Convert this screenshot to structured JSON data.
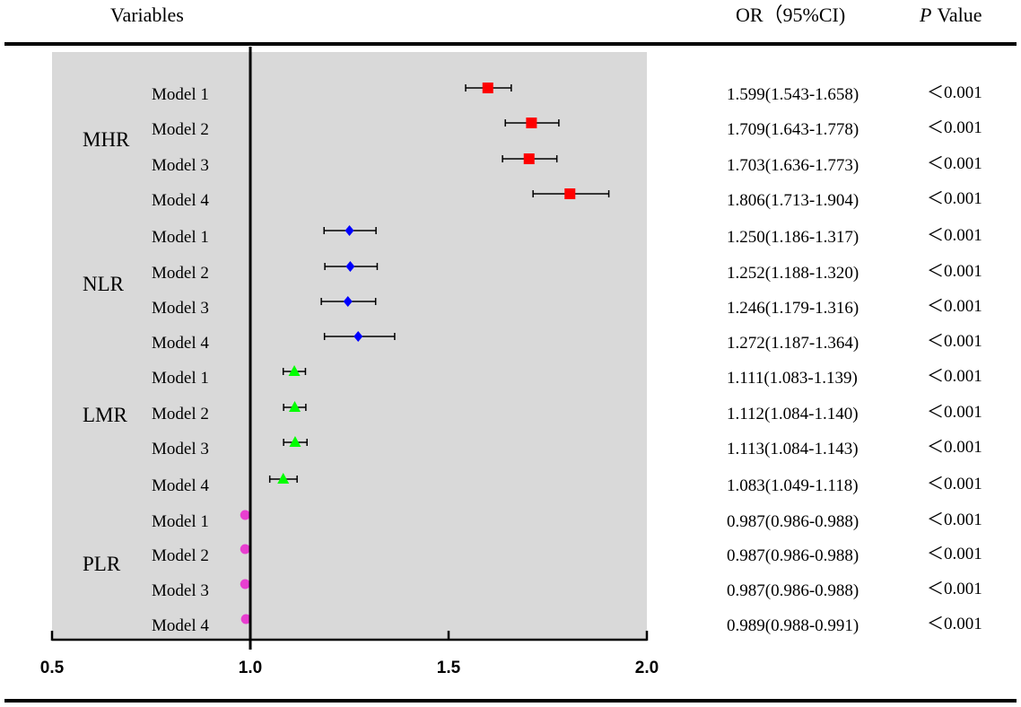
{
  "headers": {
    "variables": "Variables",
    "or_ci": "OR（95%CI)",
    "p_italic": "P",
    "p_rest": "Value"
  },
  "chart_data": {
    "type": "forest",
    "xlim": [
      0.5,
      2.0
    ],
    "reference_line": 1.0,
    "tick_labels": [
      "0.5",
      "1.0",
      "1.5",
      "2.0"
    ],
    "tick_values": [
      0.5,
      1.0,
      1.5,
      2.0
    ],
    "background": "#d9d9d9",
    "groups": [
      {
        "name": "MHR",
        "marker": "square",
        "color": "#ff0000",
        "rows": [
          {
            "model": "Model 1",
            "or": 1.599,
            "lo": 1.543,
            "hi": 1.658,
            "text": "1.599(1.543-1.658)",
            "p": "＜0.001"
          },
          {
            "model": "Model 2",
            "or": 1.709,
            "lo": 1.643,
            "hi": 1.778,
            "text": "1.709(1.643-1.778)",
            "p": "＜0.001"
          },
          {
            "model": "Model 3",
            "or": 1.703,
            "lo": 1.636,
            "hi": 1.773,
            "text": "1.703(1.636-1.773)",
            "p": "＜0.001"
          },
          {
            "model": "Model 4",
            "or": 1.806,
            "lo": 1.713,
            "hi": 1.904,
            "text": "1.806(1.713-1.904)",
            "p": "＜0.001"
          }
        ]
      },
      {
        "name": "NLR",
        "marker": "diamond",
        "color": "#0000ff",
        "rows": [
          {
            "model": "Model 1",
            "or": 1.25,
            "lo": 1.186,
            "hi": 1.317,
            "text": "1.250(1.186-1.317)",
            "p": "＜0.001"
          },
          {
            "model": "Model 2",
            "or": 1.252,
            "lo": 1.188,
            "hi": 1.32,
            "text": "1.252(1.188-1.320)",
            "p": "＜0.001"
          },
          {
            "model": "Model 3",
            "or": 1.246,
            "lo": 1.179,
            "hi": 1.316,
            "text": "1.246(1.179-1.316)",
            "p": "＜0.001"
          },
          {
            "model": "Model 4",
            "or": 1.272,
            "lo": 1.187,
            "hi": 1.364,
            "text": "1.272(1.187-1.364)",
            "p": "＜0.001"
          }
        ]
      },
      {
        "name": "LMR",
        "marker": "triangle",
        "color": "#00ff00",
        "rows": [
          {
            "model": "Model 1",
            "or": 1.111,
            "lo": 1.083,
            "hi": 1.139,
            "text": "1.111(1.083-1.139)",
            "p": "＜0.001"
          },
          {
            "model": "Model 2",
            "or": 1.112,
            "lo": 1.084,
            "hi": 1.14,
            "text": "1.112(1.084-1.140)",
            "p": "＜0.001"
          },
          {
            "model": "Model 3",
            "or": 1.113,
            "lo": 1.084,
            "hi": 1.143,
            "text": "1.113(1.084-1.143)",
            "p": "＜0.001"
          },
          {
            "model": "Model 4",
            "or": 1.083,
            "lo": 1.049,
            "hi": 1.118,
            "text": "1.083(1.049-1.118)",
            "p": "＜0.001"
          }
        ]
      },
      {
        "name": "PLR",
        "marker": "circle",
        "color": "#e83fd0",
        "rows": [
          {
            "model": "Model 1",
            "or": 0.987,
            "lo": 0.986,
            "hi": 0.988,
            "text": "0.987(0.986-0.988)",
            "p": "＜0.001"
          },
          {
            "model": "Model 2",
            "or": 0.987,
            "lo": 0.986,
            "hi": 0.988,
            "text": "0.987(0.986-0.988)",
            "p": "＜0.001"
          },
          {
            "model": "Model 3",
            "or": 0.987,
            "lo": 0.986,
            "hi": 0.988,
            "text": "0.987(0.986-0.988)",
            "p": "＜0.001"
          },
          {
            "model": "Model 4",
            "or": 0.989,
            "lo": 0.988,
            "hi": 0.991,
            "text": "0.989(0.988-0.991)",
            "p": "＜0.001"
          }
        ]
      }
    ]
  }
}
